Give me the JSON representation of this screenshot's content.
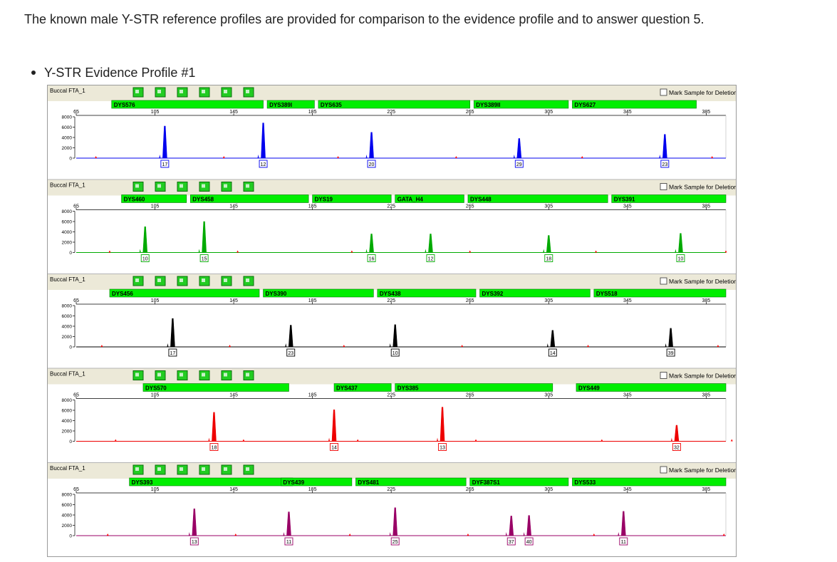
{
  "intro_text": "The known male Y-STR reference profiles are provided for comparison to the evidence profile and to answer question 5.",
  "bullet_label": "Y-STR Evidence Profile #1",
  "chart_data": {
    "type": "line",
    "title": "Y-STR Evidence Profile #1",
    "x_ticks": [
      65,
      105,
      145,
      185,
      225,
      265,
      305,
      345,
      385
    ],
    "y_ticks": [
      0,
      2000,
      4000,
      6000,
      8000
    ],
    "xlim": [
      65,
      395
    ],
    "ylim": [
      0,
      8000
    ],
    "checkbox_label": "Mark Sample for Deletion",
    "panels": [
      {
        "sample": "Buccal FTA_1",
        "color": "#0000ee",
        "loci": [
          {
            "name": "DYS576",
            "start": 83,
            "end": 160
          },
          {
            "name": "DYS389I",
            "start": 162,
            "end": 186
          },
          {
            "name": "DYS635",
            "start": 188,
            "end": 265
          },
          {
            "name": "DYS389II",
            "start": 267,
            "end": 315
          },
          {
            "name": "DYS627",
            "start": 317,
            "end": 380
          }
        ],
        "peaks": [
          {
            "x": 110,
            "height": 6200,
            "allele": "17"
          },
          {
            "x": 160,
            "height": 6800,
            "allele": "12"
          },
          {
            "x": 215,
            "height": 5000,
            "allele": "20"
          },
          {
            "x": 290,
            "height": 3800,
            "allele": "29"
          },
          {
            "x": 364,
            "height": 4600,
            "allele": "23"
          }
        ]
      },
      {
        "sample": "Buccal FTA_1",
        "color": "#00aa00",
        "loci": [
          {
            "name": "DYS460",
            "start": 88,
            "end": 121
          },
          {
            "name": "DYS458",
            "start": 123,
            "end": 183
          },
          {
            "name": "DYS19",
            "start": 185,
            "end": 225
          },
          {
            "name": "GATA_H4",
            "start": 227,
            "end": 262
          },
          {
            "name": "DYS448",
            "start": 264,
            "end": 335
          },
          {
            "name": "DYS391",
            "start": 337,
            "end": 395
          }
        ],
        "peaks": [
          {
            "x": 100,
            "height": 5000,
            "allele": "10"
          },
          {
            "x": 130,
            "height": 6000,
            "allele": "15"
          },
          {
            "x": 215,
            "height": 3600,
            "allele": "16"
          },
          {
            "x": 245,
            "height": 3600,
            "allele": "12"
          },
          {
            "x": 305,
            "height": 3300,
            "allele": "18"
          },
          {
            "x": 372,
            "height": 3700,
            "allele": "10"
          }
        ]
      },
      {
        "sample": "Buccal FTA_1",
        "color": "#000000",
        "loci": [
          {
            "name": "DYS456",
            "start": 82,
            "end": 158
          },
          {
            "name": "DYS390",
            "start": 160,
            "end": 216
          },
          {
            "name": "DYS438",
            "start": 218,
            "end": 268
          },
          {
            "name": "DYS392",
            "start": 270,
            "end": 326
          },
          {
            "name": "DYS518",
            "start": 328,
            "end": 395
          }
        ],
        "peaks": [
          {
            "x": 114,
            "height": 5500,
            "allele": "17"
          },
          {
            "x": 174,
            "height": 4200,
            "allele": "23"
          },
          {
            "x": 227,
            "height": 4300,
            "allele": "10"
          },
          {
            "x": 307,
            "height": 3200,
            "allele": "14"
          },
          {
            "x": 367,
            "height": 3600,
            "allele": "39"
          }
        ]
      },
      {
        "sample": "Buccal FTA_1",
        "color": "#ee0000",
        "loci": [
          {
            "name": "DYS570",
            "start": 99,
            "end": 173
          },
          {
            "name": "DYS437",
            "start": 196,
            "end": 225
          },
          {
            "name": "DYS385",
            "start": 227,
            "end": 307
          },
          {
            "name": "DYS449",
            "start": 319,
            "end": 395
          }
        ],
        "peaks": [
          {
            "x": 135,
            "height": 5600,
            "allele": "18"
          },
          {
            "x": 196,
            "height": 6100,
            "allele": "14"
          },
          {
            "x": 251,
            "height": 6600,
            "allele": "13"
          },
          {
            "x": 370,
            "height": 3100,
            "allele": "32"
          }
        ]
      },
      {
        "sample": "Buccal FTA_1",
        "color": "#990066",
        "loci": [
          {
            "name": "DYS393",
            "start": 92,
            "end": 175
          },
          {
            "name": "DYS439",
            "start": 169,
            "end": 205
          },
          {
            "name": "DYS481",
            "start": 207,
            "end": 263
          },
          {
            "name": "DYF387S1",
            "start": 265,
            "end": 315
          },
          {
            "name": "DYS533",
            "start": 317,
            "end": 395
          }
        ],
        "peaks": [
          {
            "x": 125,
            "height": 5200,
            "allele": "13"
          },
          {
            "x": 173,
            "height": 4600,
            "allele": "11"
          },
          {
            "x": 227,
            "height": 5400,
            "allele": "25"
          },
          {
            "x": 286,
            "height": 3800,
            "allele": "37"
          },
          {
            "x": 295,
            "height": 3900,
            "allele": "40"
          },
          {
            "x": 343,
            "height": 4700,
            "allele": "11"
          }
        ]
      }
    ]
  }
}
